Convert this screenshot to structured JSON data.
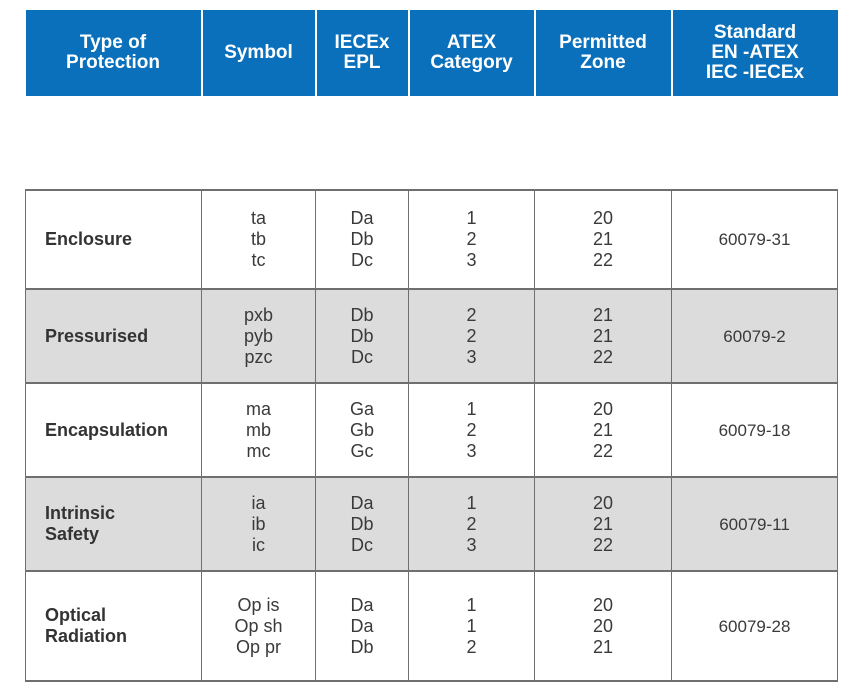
{
  "headers": [
    {
      "lines": [
        "Type of",
        "Protection"
      ]
    },
    {
      "lines": [
        "Symbol"
      ]
    },
    {
      "lines": [
        "IECEx",
        "EPL"
      ]
    },
    {
      "lines": [
        "ATEX",
        "Category"
      ]
    },
    {
      "lines": [
        "Permitted",
        "Zone"
      ]
    },
    {
      "lines": [
        "Standard",
        "EN -ATEX",
        "IEC -IECEx"
      ]
    }
  ],
  "rows": [
    {
      "type": [
        "Enclosure"
      ],
      "symbol": [
        "ta",
        "tb",
        "tc"
      ],
      "epl": [
        "Da",
        "Db",
        "Dc"
      ],
      "category": [
        "1",
        "2",
        "3"
      ],
      "zone": [
        "20",
        "21",
        "22"
      ],
      "standard": "60079-31"
    },
    {
      "type": [
        "Pressurised"
      ],
      "symbol": [
        "pxb",
        "pyb",
        "pzc"
      ],
      "epl": [
        "Db",
        "Db",
        "Dc"
      ],
      "category": [
        "2",
        "2",
        "3"
      ],
      "zone": [
        "21",
        "21",
        "22"
      ],
      "standard": "60079-2"
    },
    {
      "type": [
        "Encapsulation"
      ],
      "symbol": [
        "ma",
        "mb",
        "mc"
      ],
      "epl": [
        "Ga",
        "Gb",
        "Gc"
      ],
      "category": [
        "1",
        "2",
        "3"
      ],
      "zone": [
        "20",
        "21",
        "22"
      ],
      "standard": "60079-18"
    },
    {
      "type": [
        "Intrinsic",
        "Safety"
      ],
      "symbol": [
        "ia",
        "ib",
        "ic"
      ],
      "epl": [
        "Da",
        "Db",
        "Dc"
      ],
      "category": [
        "1",
        "2",
        "3"
      ],
      "zone": [
        "20",
        "21",
        "22"
      ],
      "standard": "60079-11"
    },
    {
      "type": [
        "Optical",
        "Radiation"
      ],
      "symbol": [
        "Op is",
        "Op sh",
        "Op pr"
      ],
      "epl": [
        "Da",
        "Da",
        "Db"
      ],
      "category": [
        "1",
        "1",
        "2"
      ],
      "zone": [
        "20",
        "20",
        "21"
      ],
      "standard": "60079-28"
    }
  ],
  "colors": {
    "header_bg": "#0a70bb",
    "shaded_row": "#dcdcdc",
    "border": "#6f6f6f"
  }
}
